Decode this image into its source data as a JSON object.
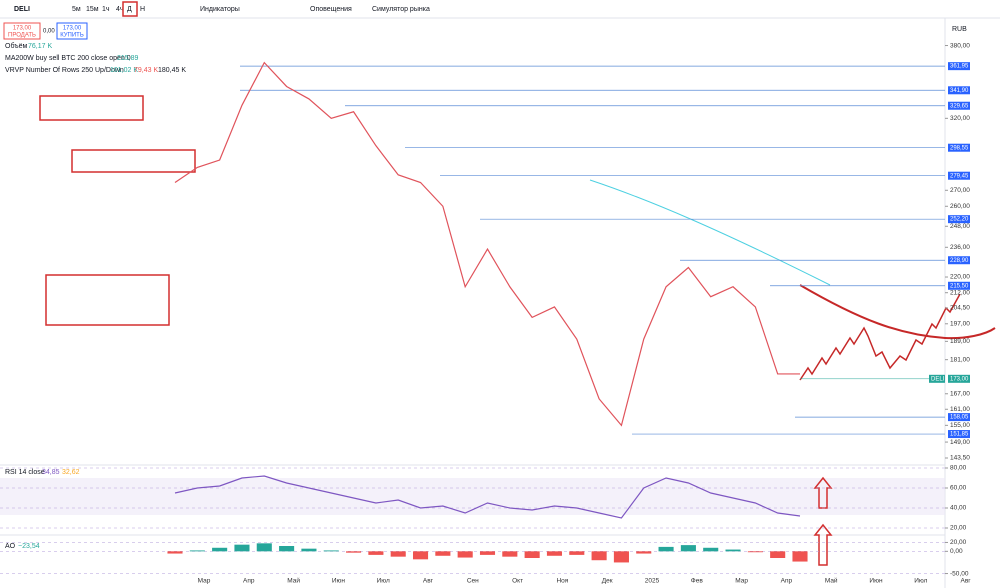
{
  "toolbar": {
    "symbol": "DELI",
    "intervals": [
      "5м",
      "15м",
      "1ч",
      "4ч",
      "Д",
      "Н"
    ],
    "indicators": "Индикаторы",
    "alerts": "Оповещения",
    "replay": "Симулятор рынка"
  },
  "trade": {
    "sell_price": "173,00",
    "sell_label": "ПРОДАТЬ",
    "spread": "0,00",
    "buy_price": "173,00",
    "buy_label": "КУПИТЬ"
  },
  "legend": {
    "volume_label": "Объём",
    "volume_value": "76,17 K",
    "ma_label": "MA200W buy sell BTC 200 close open 0",
    "ma_value": "215,89",
    "vrvp_label": "VRVP Number Of Rows 250 Up/Down",
    "vrvp_up": "101,02 K",
    "vrvp_down": "79,43 K",
    "vrvp_total": "180,45 K",
    "currency": "RUB"
  },
  "chart_data": [
    {
      "type": "line",
      "log_scale": true,
      "color": "#e0535b",
      "values": [
        275,
        285,
        290,
        330,
        365,
        345,
        335,
        320,
        325,
        300,
        280,
        275,
        260,
        215,
        235,
        215,
        200,
        205,
        190,
        165,
        155,
        190,
        215,
        225,
        210,
        215,
        205,
        175,
        175
      ],
      "ylim": [
        143.5,
        385
      ],
      "yticks": [
        {
          "value": 380,
          "label": "380,00"
        },
        {
          "value": 320,
          "label": "320,00"
        },
        {
          "value": 270,
          "label": "270,00"
        },
        {
          "value": 260,
          "label": "260,00"
        },
        {
          "value": 248,
          "label": "248,00"
        },
        {
          "value": 236,
          "label": "236,00"
        },
        {
          "value": 220,
          "label": "220,00"
        },
        {
          "value": 212,
          "label": "212,00"
        },
        {
          "value": 204.5,
          "label": "204,50"
        },
        {
          "value": 197,
          "label": "197,00"
        },
        {
          "value": 189,
          "label": "189,00"
        },
        {
          "value": 181,
          "label": "181,00"
        },
        {
          "value": 167,
          "label": "167,00"
        },
        {
          "value": 161,
          "label": "161,00"
        },
        {
          "value": 155,
          "label": "155,00"
        },
        {
          "value": 149,
          "label": "149,00"
        },
        {
          "value": 143.5,
          "label": "143,50"
        }
      ],
      "levels": [
        {
          "value": 361.95,
          "label": "361,95"
        },
        {
          "value": 341.9,
          "label": "341,90"
        },
        {
          "value": 329.65,
          "label": "329,65"
        },
        {
          "value": 298.55,
          "label": "298,55"
        },
        {
          "value": 279.45,
          "label": "279,45"
        },
        {
          "value": 252.2,
          "label": "252,20"
        },
        {
          "value": 228.9,
          "label": "228,90"
        },
        {
          "value": 215.5,
          "label": "215,50"
        },
        {
          "value": 158.05,
          "label": "158,05"
        },
        {
          "value": 151.85,
          "label": "151,85"
        }
      ],
      "last": {
        "name": "DELI",
        "value": 173,
        "label": "173,00"
      },
      "x_labels": [
        "Мар",
        "Апр",
        "Май",
        "Июн",
        "Июл",
        "Авг",
        "Сен",
        "Окт",
        "Ноя",
        "Дек",
        "2025",
        "Фев",
        "Мар",
        "Апр",
        "Май",
        "Июн",
        "Июл",
        "Авг"
      ]
    },
    {
      "type": "line",
      "title": "RSI 14 close",
      "value_text": "34,85",
      "signal_text": "32,62",
      "color": "#7e57c2",
      "values": [
        55,
        60,
        62,
        70,
        72,
        65,
        60,
        55,
        50,
        45,
        48,
        40,
        42,
        35,
        45,
        40,
        38,
        42,
        40,
        35,
        30,
        60,
        70,
        65,
        55,
        50,
        45,
        35,
        32
      ],
      "ylim": [
        16,
        84
      ],
      "yticks": [
        {
          "value": 80,
          "label": "80,00"
        },
        {
          "value": 60,
          "label": "60,00"
        },
        {
          "value": 40,
          "label": "40,00"
        },
        {
          "value": 20,
          "label": "20,00"
        }
      ]
    },
    {
      "type": "bar",
      "title": "AO",
      "value_text": "−23,54",
      "color": "#26a69a",
      "negative_color": "#ef5350",
      "values": [
        -5,
        2,
        8,
        15,
        18,
        12,
        6,
        2,
        -3,
        -8,
        -12,
        -18,
        -10,
        -14,
        -8,
        -12,
        -15,
        -10,
        -8,
        -20,
        -25,
        -5,
        10,
        14,
        8,
        4,
        -2,
        -15,
        -23
      ],
      "ylim": [
        -60,
        30
      ],
      "yticks": [
        {
          "value": 20,
          "label": "20,00"
        },
        {
          "value": 0,
          "label": "0,00"
        },
        {
          "value": -50,
          "label": "-50,00"
        }
      ]
    }
  ]
}
